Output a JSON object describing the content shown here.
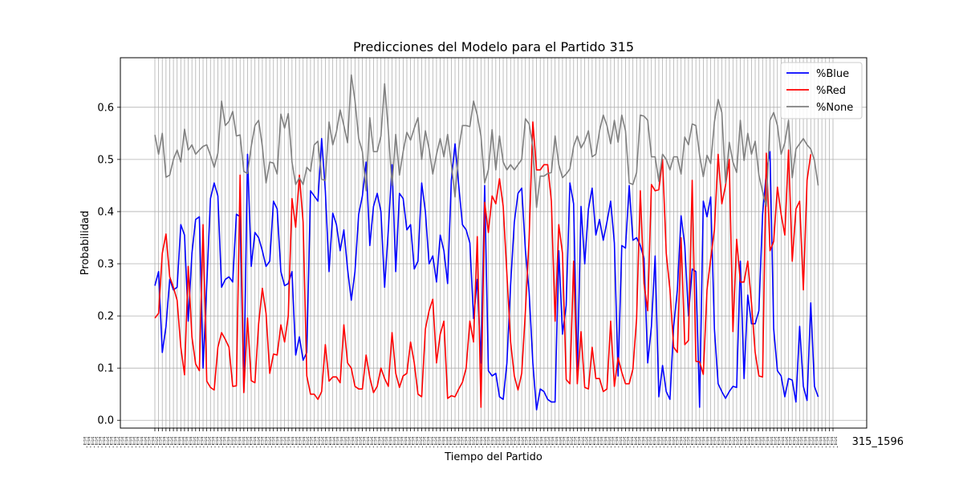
{
  "chart_data": {
    "type": "line",
    "title": "Predicciones del Modelo para el Partido 315",
    "xlabel": "Tiempo del Partido",
    "ylabel": "Probabilidad",
    "ylim": [
      -0.015,
      0.695
    ],
    "yticks": [
      "0.0",
      "0.1",
      "0.2",
      "0.3",
      "0.4",
      "0.5",
      "0.6"
    ],
    "grid": true,
    "legend_position": "upper right",
    "x_count": 184,
    "x_edge_labels": [
      "315_",
      "315_1596"
    ],
    "series": [
      {
        "name": "%Blue",
        "color": "#0000ff",
        "values": [
          0.258,
          0.285,
          0.13,
          0.18,
          0.27,
          0.25,
          0.255,
          0.375,
          0.355,
          0.19,
          0.32,
          0.385,
          0.39,
          0.1,
          0.26,
          0.425,
          0.455,
          0.43,
          0.255,
          0.27,
          0.275,
          0.265,
          0.395,
          0.39,
          0.055,
          0.51,
          0.295,
          0.36,
          0.35,
          0.325,
          0.295,
          0.305,
          0.42,
          0.405,
          0.285,
          0.258,
          0.262,
          0.285,
          0.125,
          0.16,
          0.115,
          0.13,
          0.44,
          0.43,
          0.42,
          0.54,
          0.44,
          0.285,
          0.397,
          0.375,
          0.325,
          0.365,
          0.29,
          0.23,
          0.285,
          0.395,
          0.43,
          0.495,
          0.335,
          0.41,
          0.435,
          0.4,
          0.255,
          0.365,
          0.49,
          0.285,
          0.435,
          0.425,
          0.365,
          0.375,
          0.29,
          0.305,
          0.455,
          0.4,
          0.3,
          0.315,
          0.265,
          0.355,
          0.325,
          0.262,
          0.46,
          0.53,
          0.45,
          0.375,
          0.365,
          0.34,
          0.195,
          0.27,
          0.11,
          0.45,
          0.095,
          0.085,
          0.09,
          0.045,
          0.04,
          0.11,
          0.26,
          0.38,
          0.435,
          0.445,
          0.325,
          0.245,
          0.11,
          0.02,
          0.06,
          0.055,
          0.04,
          0.035,
          0.035,
          0.325,
          0.165,
          0.22,
          0.455,
          0.415,
          0.085,
          0.41,
          0.3,
          0.405,
          0.445,
          0.355,
          0.385,
          0.345,
          0.38,
          0.42,
          0.34,
          0.085,
          0.335,
          0.33,
          0.45,
          0.345,
          0.35,
          0.335,
          0.31,
          0.11,
          0.18,
          0.315,
          0.045,
          0.105,
          0.055,
          0.04,
          0.18,
          0.25,
          0.392,
          0.335,
          0.2,
          0.29,
          0.285,
          0.025,
          0.42,
          0.39,
          0.428,
          0.175,
          0.07,
          0.055,
          0.042,
          0.055,
          0.065,
          0.063,
          0.305,
          0.08,
          0.24,
          0.185,
          0.185,
          0.21,
          0.395,
          0.475,
          0.515,
          0.175,
          0.095,
          0.085,
          0.045,
          0.08,
          0.077,
          0.035,
          0.18,
          0.065,
          0.038,
          0.225,
          0.065,
          0.045
        ]
      },
      {
        "name": "%Red",
        "color": "#ff0000",
        "values": [
          0.196,
          0.205,
          0.32,
          0.357,
          0.275,
          0.255,
          0.23,
          0.14,
          0.087,
          0.295,
          0.16,
          0.108,
          0.095,
          0.375,
          0.075,
          0.063,
          0.058,
          0.14,
          0.168,
          0.155,
          0.14,
          0.065,
          0.066,
          0.47,
          0.053,
          0.196,
          0.076,
          0.072,
          0.185,
          0.253,
          0.205,
          0.09,
          0.127,
          0.125,
          0.183,
          0.15,
          0.2,
          0.425,
          0.37,
          0.47,
          0.38,
          0.085,
          0.05,
          0.05,
          0.04,
          0.055,
          0.145,
          0.075,
          0.083,
          0.083,
          0.072,
          0.183,
          0.11,
          0.1,
          0.065,
          0.06,
          0.06,
          0.125,
          0.082,
          0.053,
          0.065,
          0.1,
          0.08,
          0.065,
          0.168,
          0.09,
          0.063,
          0.085,
          0.09,
          0.15,
          0.11,
          0.05,
          0.045,
          0.175,
          0.21,
          0.232,
          0.11,
          0.165,
          0.19,
          0.042,
          0.047,
          0.045,
          0.06,
          0.073,
          0.1,
          0.19,
          0.15,
          0.352,
          0.025,
          0.418,
          0.36,
          0.43,
          0.415,
          0.463,
          0.41,
          0.28,
          0.15,
          0.085,
          0.058,
          0.09,
          0.21,
          0.35,
          0.572,
          0.48,
          0.48,
          0.49,
          0.49,
          0.42,
          0.19,
          0.375,
          0.32,
          0.078,
          0.07,
          0.305,
          0.07,
          0.17,
          0.063,
          0.06,
          0.14,
          0.08,
          0.08,
          0.055,
          0.06,
          0.19,
          0.065,
          0.12,
          0.092,
          0.07,
          0.07,
          0.098,
          0.195,
          0.44,
          0.262,
          0.21,
          0.452,
          0.44,
          0.442,
          0.5,
          0.32,
          0.25,
          0.14,
          0.13,
          0.35,
          0.145,
          0.153,
          0.46,
          0.113,
          0.112,
          0.088,
          0.25,
          0.31,
          0.365,
          0.51,
          0.415,
          0.45,
          0.5,
          0.17,
          0.347,
          0.265,
          0.265,
          0.305,
          0.225,
          0.13,
          0.085,
          0.083,
          0.512,
          0.325,
          0.343,
          0.447,
          0.395,
          0.355,
          0.518,
          0.305,
          0.405,
          0.42,
          0.25,
          0.46,
          0.51
        ]
      },
      {
        "name": "%None",
        "color": "#808080",
        "values": [
          0.547,
          0.51,
          0.55,
          0.466,
          0.47,
          0.5,
          0.518,
          0.495,
          0.558,
          0.518,
          0.528,
          0.51,
          0.518,
          0.525,
          0.528,
          0.508,
          0.485,
          0.512,
          0.612,
          0.565,
          0.573,
          0.592,
          0.545,
          0.547,
          0.477,
          0.473,
          0.525,
          0.565,
          0.575,
          0.525,
          0.455,
          0.495,
          0.493,
          0.472,
          0.587,
          0.56,
          0.588,
          0.495,
          0.452,
          0.465,
          0.452,
          0.485,
          0.477,
          0.528,
          0.535,
          0.462,
          0.46,
          0.572,
          0.528,
          0.553,
          0.595,
          0.565,
          0.532,
          0.662,
          0.613,
          0.54,
          0.515,
          0.44,
          0.58,
          0.515,
          0.515,
          0.545,
          0.645,
          0.555,
          0.45,
          0.548,
          0.47,
          0.515,
          0.552,
          0.537,
          0.56,
          0.58,
          0.5,
          0.555,
          0.52,
          0.472,
          0.51,
          0.54,
          0.505,
          0.548,
          0.492,
          0.428,
          0.52,
          0.565,
          0.565,
          0.563,
          0.612,
          0.585,
          0.545,
          0.455,
          0.48,
          0.557,
          0.48,
          0.545,
          0.495,
          0.48,
          0.49,
          0.48,
          0.49,
          0.5,
          0.578,
          0.568,
          0.525,
          0.408,
          0.468,
          0.468,
          0.473,
          0.475,
          0.545,
          0.49,
          0.465,
          0.472,
          0.482,
          0.525,
          0.545,
          0.522,
          0.535,
          0.555,
          0.505,
          0.51,
          0.555,
          0.585,
          0.565,
          0.53,
          0.575,
          0.533,
          0.585,
          0.555,
          0.455,
          0.452,
          0.475,
          0.585,
          0.583,
          0.575,
          0.505,
          0.505,
          0.458,
          0.51,
          0.5,
          0.48,
          0.505,
          0.505,
          0.472,
          0.543,
          0.528,
          0.568,
          0.565,
          0.508,
          0.467,
          0.508,
          0.492,
          0.572,
          0.615,
          0.59,
          0.455,
          0.533,
          0.495,
          0.475,
          0.575,
          0.498,
          0.55,
          0.51,
          0.535,
          0.47,
          0.438,
          0.41,
          0.575,
          0.59,
          0.565,
          0.51,
          0.532,
          0.575,
          0.465,
          0.52,
          0.53,
          0.54,
          0.528,
          0.52,
          0.498,
          0.45
        ]
      }
    ]
  }
}
